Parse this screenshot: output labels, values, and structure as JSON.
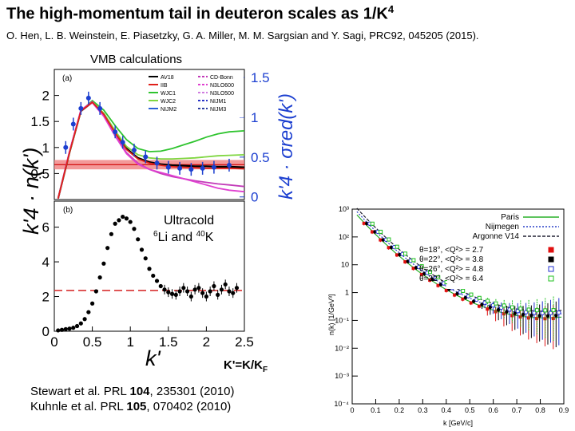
{
  "header": {
    "title": "The high-momentum tail in deuteron scales as 1/K",
    "title_sup": "4",
    "citation": "O. Hen, L. B. Weinstein, E. Piasetzky, G. A. Miller, M. M. Sargsian and Y. Sagi, PRC92, 045205 (2015).",
    "vmb_label": "VMB calculations"
  },
  "refs": {
    "line1_pre": "Stewart et al. PRL ",
    "line1_vol": "104",
    "line1_post": ", 235301 (2010)",
    "line2_pre": "Kuhnle et al. PRL ",
    "line2_vol": "105",
    "line2_post": ", 070402 (2010)"
  },
  "kdef": "K'=K/K",
  "kdef_sub": "F",
  "chart_data": [
    {
      "type": "line",
      "panel_label": "(a)",
      "xlim": [
        0,
        2.5
      ],
      "ylim": [
        0,
        2.5
      ],
      "yticks": [
        "0.5",
        "1",
        "1.5",
        "2"
      ],
      "right_ylabel": "k'4 · σred(k')",
      "right_yticks": [
        "0",
        "0.5",
        "1",
        "1.5"
      ],
      "ylabel": "k'4 · n(k')",
      "band": {
        "y0": 0.58,
        "y1": 0.76,
        "line": 0.67
      },
      "colors": {
        "AV18": "#000000",
        "IIB": "#e0201a",
        "WJC1": "#2fc42f",
        "WJC2": "#7fd640",
        "NIJM2": "#2a5fd6",
        "CD-Bonn": "#c23ab8",
        "N3LO600": "#e040d0",
        "N3LO500": "#d07de0",
        "NIJM1": "#2b35c8",
        "NIJM3": "#3040a0"
      },
      "legend": [
        "AV18",
        "IIB",
        "WJC1",
        "WJC2",
        "NIJM2",
        "CD-Bonn",
        "N3LO600",
        "N3LO500",
        "NIJM1",
        "NIJM3"
      ],
      "legend_position": "top-right",
      "x": [
        0.05,
        0.2,
        0.35,
        0.5,
        0.65,
        0.8,
        0.95,
        1.1,
        1.25,
        1.4,
        1.55,
        1.7,
        1.85,
        2.0,
        2.15,
        2.3,
        2.5
      ],
      "series": [
        {
          "name": "AV18",
          "values": [
            0.02,
            0.9,
            1.7,
            1.87,
            1.65,
            1.3,
            0.98,
            0.8,
            0.72,
            0.68,
            0.66,
            0.65,
            0.64,
            0.64,
            0.63,
            0.63,
            0.62
          ]
        },
        {
          "name": "WJC1",
          "values": [
            0.02,
            0.9,
            1.7,
            1.9,
            1.72,
            1.42,
            1.15,
            0.98,
            0.92,
            0.93,
            0.98,
            1.05,
            1.12,
            1.2,
            1.26,
            1.3,
            1.32
          ]
        },
        {
          "name": "WJC2",
          "values": [
            0.02,
            0.9,
            1.7,
            1.88,
            1.66,
            1.32,
            1.02,
            0.86,
            0.8,
            0.78,
            0.78,
            0.79,
            0.8,
            0.82,
            0.84,
            0.85,
            0.86
          ]
        },
        {
          "name": "CD-Bonn",
          "values": [
            0.02,
            0.92,
            1.72,
            1.88,
            1.62,
            1.25,
            0.9,
            0.7,
            0.58,
            0.5,
            0.44,
            0.4,
            0.36,
            0.33,
            0.3,
            0.28,
            0.25
          ]
        },
        {
          "name": "N3LO600",
          "values": [
            0.02,
            0.92,
            1.72,
            1.86,
            1.6,
            1.22,
            0.88,
            0.68,
            0.58,
            0.52,
            0.46,
            0.4,
            0.34,
            0.28,
            0.22,
            0.18,
            0.15
          ]
        },
        {
          "name": "IIB",
          "values": [
            0.02,
            0.9,
            1.7,
            1.87,
            1.64,
            1.28,
            0.96,
            0.78,
            0.7,
            0.66,
            0.63,
            0.62,
            0.61,
            0.6,
            0.6,
            0.6,
            0.59
          ]
        }
      ],
      "data_points": {
        "x": [
          0.15,
          0.25,
          0.35,
          0.45,
          0.6,
          0.8,
          0.9,
          1.05,
          1.2,
          1.35,
          1.5,
          1.65,
          1.8,
          1.95,
          2.1,
          2.3
        ],
        "y": [
          1.0,
          1.45,
          1.75,
          1.95,
          1.75,
          1.3,
          1.1,
          0.95,
          0.82,
          0.7,
          0.62,
          0.6,
          0.58,
          0.6,
          0.62,
          0.66
        ]
      }
    },
    {
      "type": "scatter",
      "panel_label": "(b)",
      "annotation": "Ultracold",
      "annotation2_sup1": "6",
      "annotation2_a": "Li and ",
      "annotation2_sup2": "40",
      "annotation2_b": "K",
      "xlabel": "k'",
      "xlim": [
        0,
        2.5
      ],
      "xticks": [
        "0",
        "0.5",
        "1",
        "1.5",
        "2",
        "2.5"
      ],
      "ylim": [
        0,
        7.5
      ],
      "yticks": [
        "0",
        "2",
        "4",
        "6"
      ],
      "ref_line": 2.35,
      "x": [
        0.05,
        0.1,
        0.15,
        0.2,
        0.25,
        0.3,
        0.35,
        0.4,
        0.45,
        0.5,
        0.55,
        0.6,
        0.65,
        0.7,
        0.75,
        0.8,
        0.85,
        0.9,
        0.95,
        1.0,
        1.05,
        1.1,
        1.15,
        1.2,
        1.25,
        1.3,
        1.35,
        1.4,
        1.45,
        1.5,
        1.55,
        1.6,
        1.65,
        1.7,
        1.75,
        1.8,
        1.85,
        1.9,
        1.95,
        2.0,
        2.05,
        2.1,
        2.15,
        2.2,
        2.25,
        2.3,
        2.35,
        2.4
      ],
      "y": [
        0.05,
        0.08,
        0.12,
        0.15,
        0.2,
        0.3,
        0.45,
        0.7,
        1.1,
        1.6,
        2.3,
        3.1,
        3.9,
        4.8,
        5.6,
        6.2,
        6.4,
        6.6,
        6.5,
        6.3,
        5.9,
        5.3,
        4.7,
        4.2,
        3.6,
        3.2,
        2.9,
        2.6,
        2.4,
        2.25,
        2.15,
        2.1,
        2.3,
        2.5,
        2.3,
        2.0,
        2.4,
        2.5,
        2.2,
        2.0,
        2.3,
        2.6,
        2.1,
        2.4,
        2.7,
        2.3,
        2.2,
        2.5
      ]
    },
    {
      "type": "scatter",
      "ylabel": "n(k) [1/GeV³]",
      "xlabel": "k [GeV/c]",
      "xlim": [
        0,
        0.9
      ],
      "xticks": [
        "0",
        "0.1",
        "0.2",
        "0.3",
        "0.4",
        "0.5",
        "0.6",
        "0.7",
        "0.8",
        "0.9"
      ],
      "ylog": true,
      "ylim_exp": [
        -4,
        3
      ],
      "yticks": [
        "10³",
        "10²",
        "10",
        "1",
        "10⁻¹",
        "10⁻²",
        "10⁻³",
        "10⁻⁴"
      ],
      "legend_position": "top-right",
      "lines": [
        {
          "name": "Paris",
          "color": "#28b028"
        },
        {
          "name": "Nijmegen",
          "color": "#2a40c8"
        },
        {
          "name": "Argonne V14",
          "color": "#223"
        }
      ],
      "series": [
        {
          "name": "θ=18°, <Q²> = 2.7",
          "color": "#e01010"
        },
        {
          "name": "θ=22°, <Q²> = 3.8",
          "color": "#000000"
        },
        {
          "name": "θ=26°, <Q²> = 4.8",
          "color": "#2030d0"
        },
        {
          "name": "θ=32°, <Q²> = 6.4",
          "color": "#20c020"
        }
      ]
    }
  ]
}
